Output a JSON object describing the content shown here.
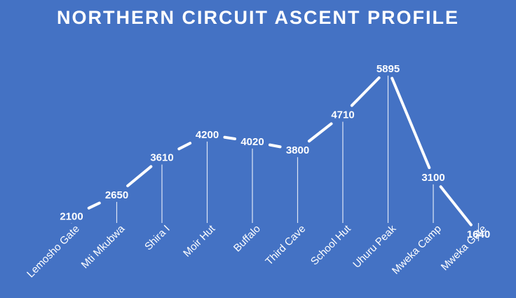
{
  "chart_data": {
    "type": "line",
    "title": "NORTHERN CIRCUIT ASCENT PROFILE",
    "categories": [
      "Lemosho Gate",
      "Mti Mkubwa",
      "Shira I",
      "Moir Hut",
      "Buffalo",
      "Third Cave",
      "School Hut",
      "Uhuru Peak",
      "Mweka Camp",
      "Mweka Gate"
    ],
    "values": [
      2100,
      2650,
      3610,
      4200,
      4020,
      3800,
      4710,
      5895,
      3100,
      1640
    ],
    "xlabel": "",
    "ylabel": "",
    "ylim": [
      0,
      6100
    ],
    "grid": false,
    "legend": "none",
    "colors": {
      "background": "#4472c4",
      "line": "#ffffff",
      "text": "#ffffff"
    }
  }
}
